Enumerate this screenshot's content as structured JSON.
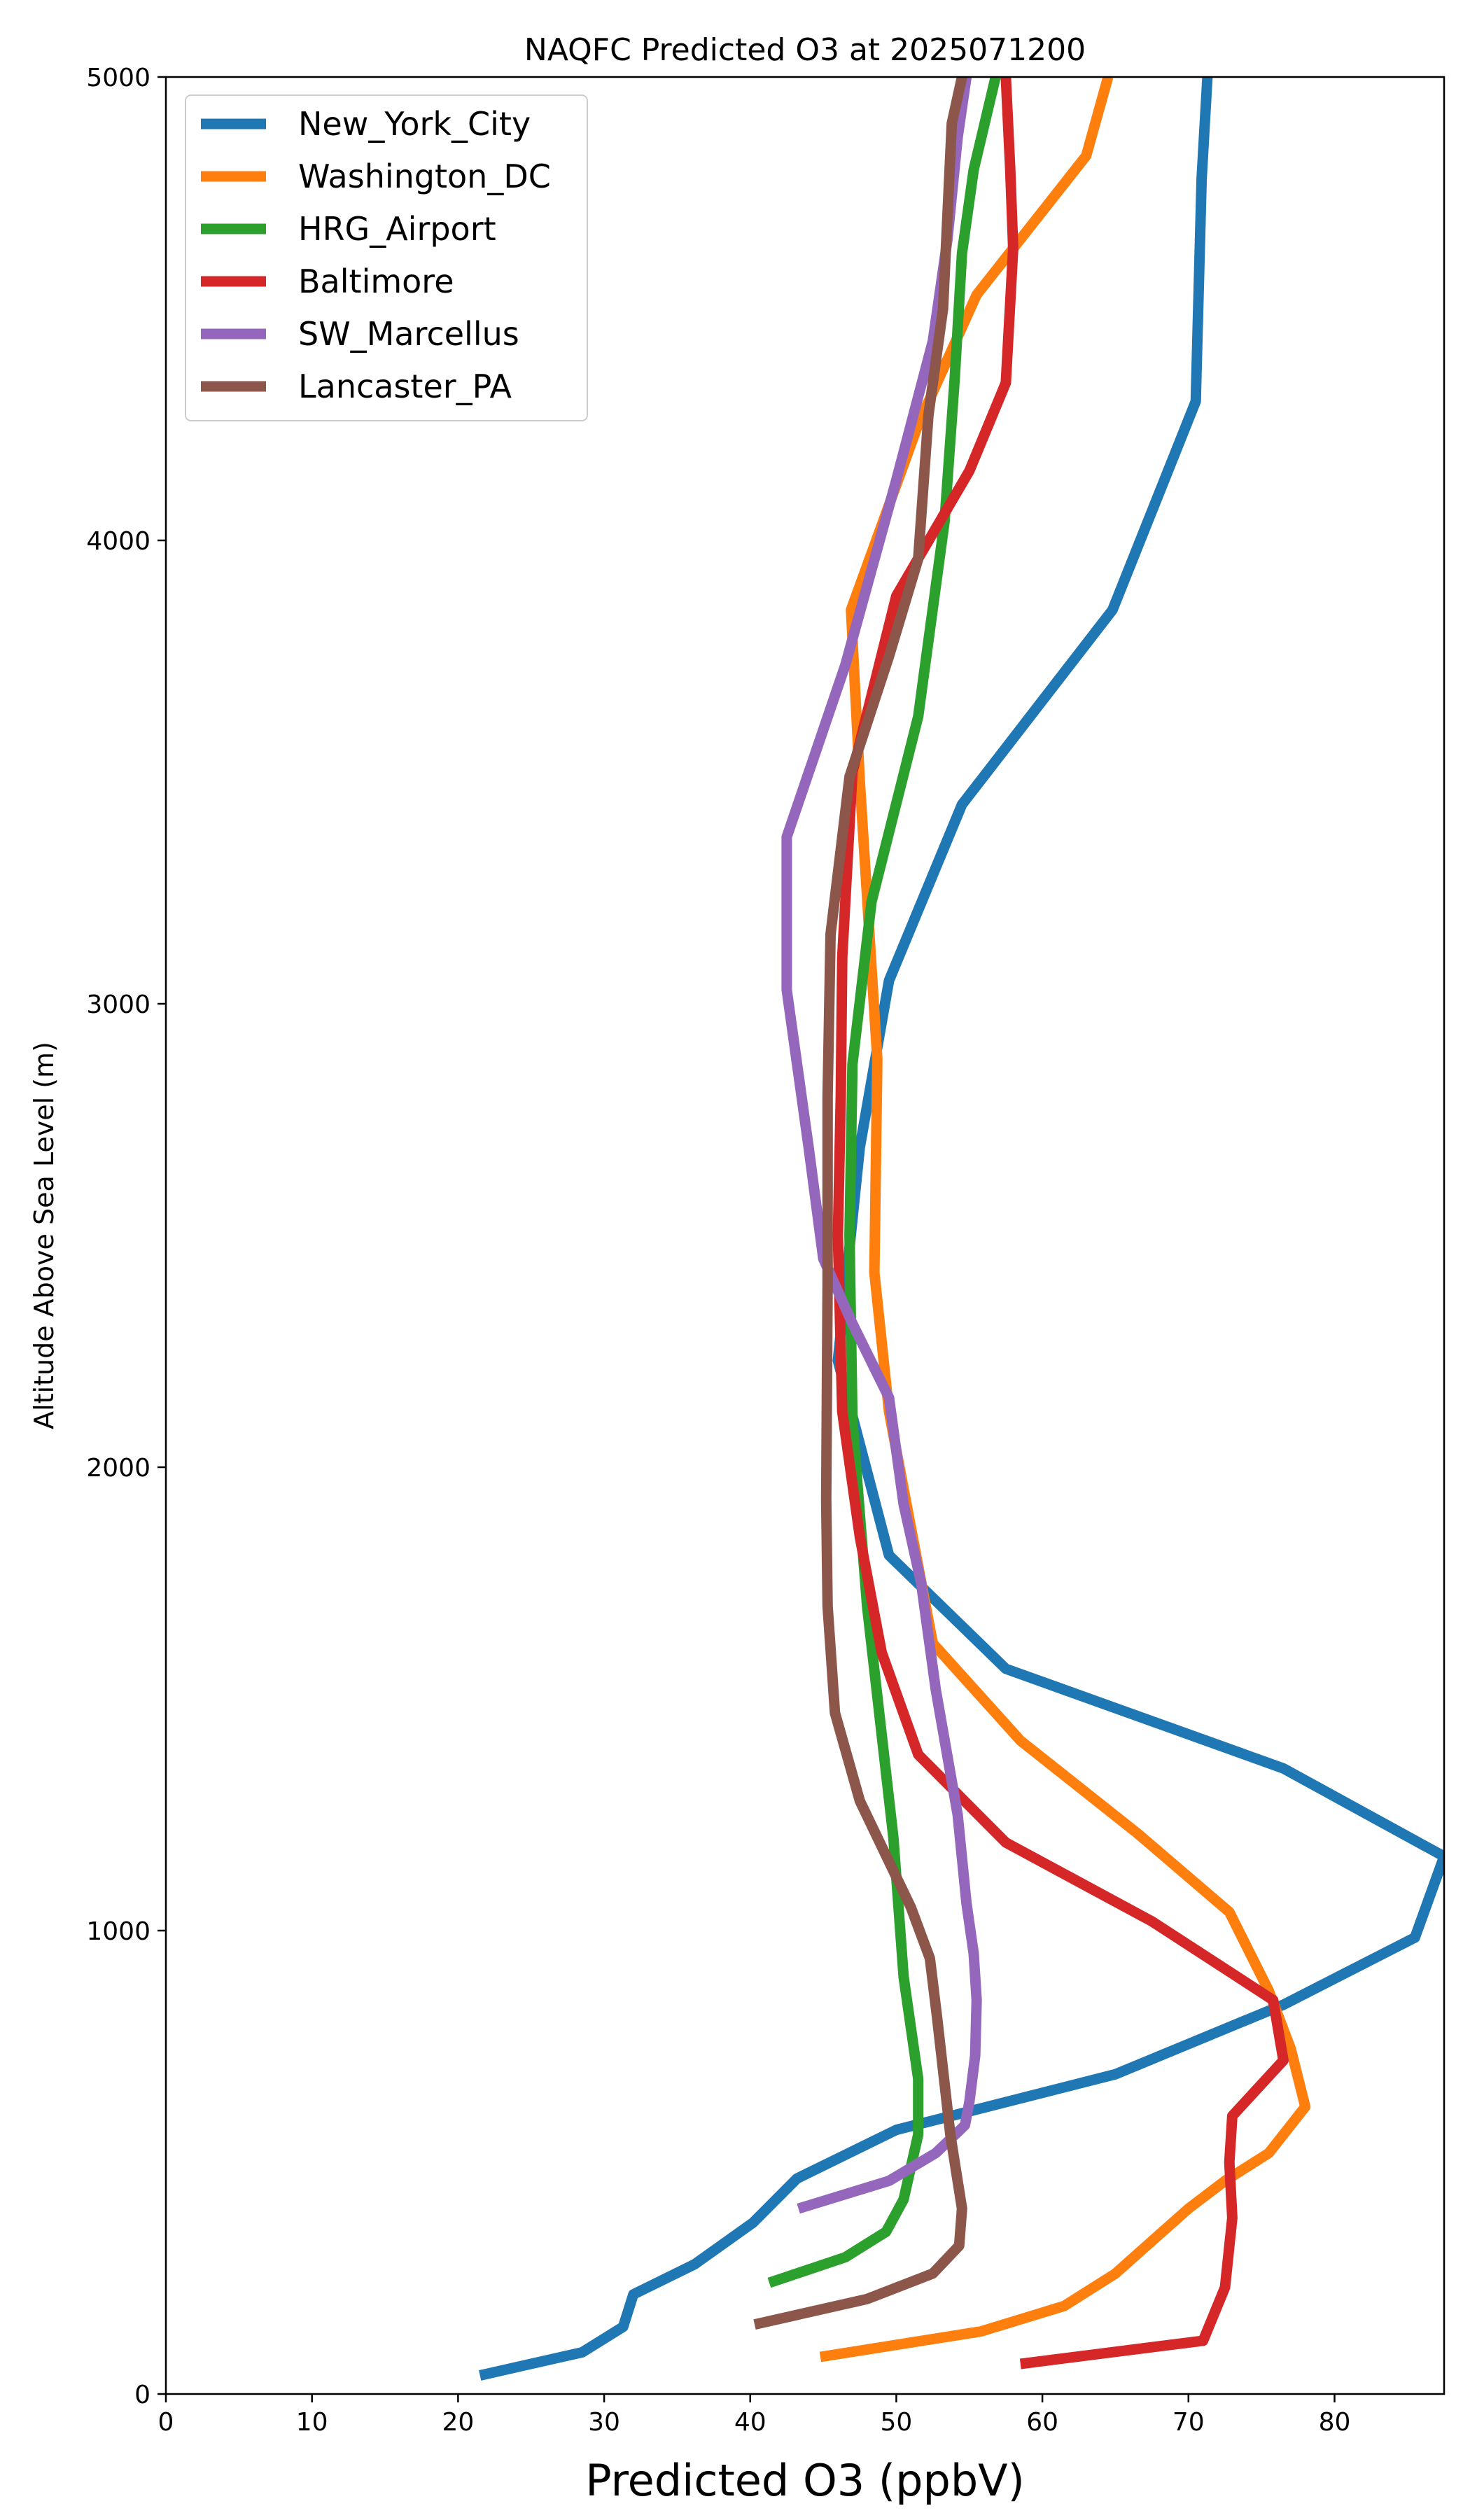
{
  "chart_data": {
    "type": "line",
    "title": "NAQFC Predicted O3 at 2025071200",
    "xlabel": "Predicted O3 (ppbV)",
    "ylabel": "Altitude Above Sea Level (m)",
    "xlim": [
      0,
      87.5
    ],
    "ylim": [
      0,
      5000
    ],
    "xticks": [
      0,
      10,
      20,
      30,
      40,
      50,
      60,
      70,
      80
    ],
    "yticks": [
      0,
      1000,
      2000,
      3000,
      4000,
      5000
    ],
    "grid": false,
    "legend_position": "top-left",
    "series": [
      {
        "name": "New_York_City",
        "color": "#1f77b4",
        "points": [
          [
            21.5,
            40
          ],
          [
            28.5,
            90
          ],
          [
            31.3,
            145
          ],
          [
            32.0,
            215
          ],
          [
            36.2,
            280
          ],
          [
            40.2,
            370
          ],
          [
            43.2,
            465
          ],
          [
            50.0,
            570
          ],
          [
            65.0,
            690
          ],
          [
            76.5,
            840
          ],
          [
            85.5,
            985
          ],
          [
            87.5,
            1160
          ],
          [
            76.5,
            1350
          ],
          [
            57.5,
            1565
          ],
          [
            49.5,
            1810
          ],
          [
            46.0,
            2230
          ],
          [
            47.5,
            2690
          ],
          [
            49.5,
            3050
          ],
          [
            54.5,
            3430
          ],
          [
            64.8,
            3850
          ],
          [
            70.5,
            4300
          ],
          [
            70.9,
            4780
          ],
          [
            71.3,
            5000
          ]
        ]
      },
      {
        "name": "Washington_DC",
        "color": "#ff7f0e",
        "points": [
          [
            44.8,
            80
          ],
          [
            55.8,
            135
          ],
          [
            61.5,
            190
          ],
          [
            65.0,
            260
          ],
          [
            67.5,
            330
          ],
          [
            70.0,
            400
          ],
          [
            72.5,
            460
          ],
          [
            75.5,
            520
          ],
          [
            78.0,
            620
          ],
          [
            77.0,
            745
          ],
          [
            75.5,
            870
          ],
          [
            72.8,
            1040
          ],
          [
            66.5,
            1210
          ],
          [
            58.5,
            1410
          ],
          [
            52.5,
            1620
          ],
          [
            49.5,
            2120
          ],
          [
            48.5,
            2420
          ],
          [
            48.7,
            2880
          ],
          [
            47.5,
            3480
          ],
          [
            46.9,
            3850
          ],
          [
            51.5,
            4250
          ],
          [
            55.5,
            4530
          ],
          [
            63.0,
            4830
          ],
          [
            64.5,
            5000
          ]
        ]
      },
      {
        "name": "HRG_Airport",
        "color": "#2ca02c",
        "points": [
          [
            41.3,
            240
          ],
          [
            46.5,
            295
          ],
          [
            49.3,
            350
          ],
          [
            50.5,
            420
          ],
          [
            51.5,
            560
          ],
          [
            51.5,
            680
          ],
          [
            50.5,
            900
          ],
          [
            49.8,
            1200
          ],
          [
            48.0,
            1700
          ],
          [
            47.0,
            2100
          ],
          [
            46.8,
            2500
          ],
          [
            47.0,
            2870
          ],
          [
            48.3,
            3220
          ],
          [
            51.5,
            3620
          ],
          [
            53.3,
            4040
          ],
          [
            54.0,
            4350
          ],
          [
            54.5,
            4620
          ],
          [
            55.3,
            4800
          ],
          [
            56.8,
            5000
          ]
        ]
      },
      {
        "name": "Baltimore",
        "color": "#d62728",
        "points": [
          [
            58.5,
            65
          ],
          [
            71.0,
            115
          ],
          [
            72.5,
            230
          ],
          [
            73.0,
            380
          ],
          [
            72.8,
            500
          ],
          [
            73.0,
            600
          ],
          [
            76.5,
            720
          ],
          [
            75.8,
            850
          ],
          [
            67.5,
            1020
          ],
          [
            57.5,
            1190
          ],
          [
            51.5,
            1380
          ],
          [
            49.0,
            1600
          ],
          [
            47.5,
            1850
          ],
          [
            46.3,
            2120
          ],
          [
            46.0,
            2500
          ],
          [
            46.2,
            2800
          ],
          [
            46.3,
            3100
          ],
          [
            47.0,
            3500
          ],
          [
            50.0,
            3880
          ],
          [
            55.0,
            4150
          ],
          [
            57.5,
            4340
          ],
          [
            58.0,
            4630
          ],
          [
            57.8,
            4800
          ],
          [
            57.5,
            5000
          ]
        ]
      },
      {
        "name": "SW_Marcellus",
        "color": "#9467bd",
        "points": [
          [
            43.3,
            400
          ],
          [
            49.5,
            460
          ],
          [
            52.7,
            520
          ],
          [
            54.7,
            580
          ],
          [
            55.0,
            630
          ],
          [
            55.4,
            730
          ],
          [
            55.5,
            850
          ],
          [
            55.3,
            950
          ],
          [
            54.8,
            1060
          ],
          [
            54.2,
            1250
          ],
          [
            52.7,
            1520
          ],
          [
            51.7,
            1750
          ],
          [
            50.5,
            1920
          ],
          [
            49.5,
            2150
          ],
          [
            47.0,
            2310
          ],
          [
            45.0,
            2450
          ],
          [
            44.0,
            2690
          ],
          [
            42.5,
            3030
          ],
          [
            42.5,
            3360
          ],
          [
            46.5,
            3730
          ],
          [
            50.0,
            4130
          ],
          [
            52.5,
            4430
          ],
          [
            53.5,
            4650
          ],
          [
            54.2,
            4870
          ],
          [
            54.8,
            5000
          ]
        ]
      },
      {
        "name": "Lancaster_PA",
        "color": "#8c564b",
        "points": [
          [
            40.3,
            150
          ],
          [
            48.0,
            205
          ],
          [
            52.5,
            260
          ],
          [
            54.3,
            320
          ],
          [
            54.5,
            400
          ],
          [
            53.7,
            560
          ],
          [
            52.8,
            810
          ],
          [
            52.3,
            940
          ],
          [
            51.0,
            1050
          ],
          [
            47.5,
            1280
          ],
          [
            45.8,
            1470
          ],
          [
            45.3,
            1700
          ],
          [
            45.2,
            1930
          ],
          [
            45.3,
            2400
          ],
          [
            45.3,
            2800
          ],
          [
            45.5,
            3150
          ],
          [
            46.8,
            3490
          ],
          [
            49.5,
            3750
          ],
          [
            51.5,
            3960
          ],
          [
            52.2,
            4270
          ],
          [
            53.2,
            4500
          ],
          [
            53.8,
            4900
          ],
          [
            54.5,
            5000
          ]
        ]
      }
    ]
  }
}
